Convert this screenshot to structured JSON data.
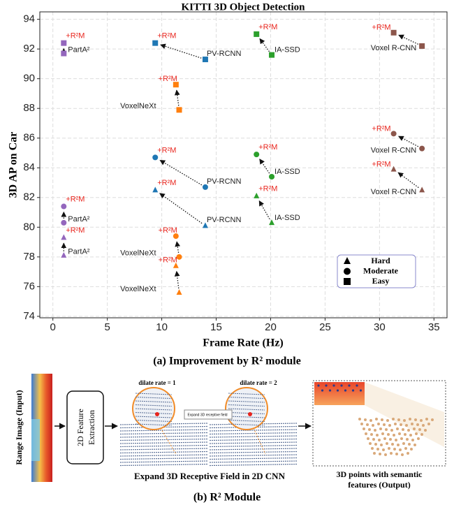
{
  "chart_data": {
    "type": "scatter",
    "title": "KITTI 3D Object Detection",
    "xlabel": "Frame Rate (Hz)",
    "ylabel": "3D AP on Car",
    "annotation": "+R²M",
    "xlim": [
      -1.2,
      36.2
    ],
    "ylim": [
      73.9,
      94.5
    ],
    "xticks": [
      0,
      5,
      10,
      15,
      20,
      25,
      30,
      35
    ],
    "yticks": [
      74,
      76,
      78,
      80,
      82,
      84,
      86,
      88,
      90,
      92,
      94
    ],
    "grid": true,
    "legend": [
      {
        "name": "Hard",
        "marker": "triangle"
      },
      {
        "name": "Moderate",
        "marker": "circle"
      },
      {
        "name": "Easy",
        "marker": "square"
      }
    ],
    "series": [
      {
        "label": "PartA²",
        "color": "#9467bd",
        "marker": "square",
        "x": [
          1.0,
          1.0
        ],
        "values": [
          91.7,
          92.4
        ]
      },
      {
        "label": "PartA²",
        "color": "#9467bd",
        "marker": "circle",
        "x": [
          1.0,
          1.0
        ],
        "values": [
          80.3,
          81.4
        ]
      },
      {
        "label": "PartA²",
        "color": "#9467bd",
        "marker": "triangle",
        "x": [
          1.0,
          1.0
        ],
        "values": [
          78.1,
          79.3
        ]
      },
      {
        "label": "PV-RCNN",
        "color": "#1f77b4",
        "marker": "square",
        "x": [
          14.0,
          9.4
        ],
        "values": [
          91.3,
          92.4
        ]
      },
      {
        "label": "PV-RCNN",
        "color": "#1f77b4",
        "marker": "circle",
        "x": [
          14.0,
          9.4
        ],
        "values": [
          82.7,
          84.7
        ]
      },
      {
        "label": "PV-RCNN",
        "color": "#1f77b4",
        "marker": "triangle",
        "x": [
          14.0,
          9.4
        ],
        "values": [
          80.1,
          82.5
        ]
      },
      {
        "label": "VoxelNeXt",
        "color": "#ff7f0e",
        "marker": "square",
        "x": [
          11.6,
          11.3
        ],
        "values": [
          87.9,
          89.6
        ]
      },
      {
        "label": "VoxelNeXt",
        "color": "#ff7f0e",
        "marker": "circle",
        "x": [
          11.6,
          11.3
        ],
        "values": [
          78.0,
          79.4
        ]
      },
      {
        "label": "VoxelNeXt",
        "color": "#ff7f0e",
        "marker": "triangle",
        "x": [
          11.6,
          11.3
        ],
        "values": [
          75.6,
          77.4
        ]
      },
      {
        "label": "IA-SSD",
        "color": "#2ca02c",
        "marker": "square",
        "x": [
          20.1,
          18.7
        ],
        "values": [
          91.6,
          93.0
        ]
      },
      {
        "label": "IA-SSD",
        "color": "#2ca02c",
        "marker": "circle",
        "x": [
          20.1,
          18.7
        ],
        "values": [
          83.4,
          84.9
        ]
      },
      {
        "label": "IA-SSD",
        "color": "#2ca02c",
        "marker": "triangle",
        "x": [
          20.1,
          18.7
        ],
        "values": [
          80.3,
          82.1
        ]
      },
      {
        "label": "Voxel R-CNN",
        "color": "#8c564b",
        "marker": "square",
        "x": [
          33.9,
          31.3
        ],
        "values": [
          92.2,
          93.1
        ]
      },
      {
        "label": "Voxel R-CNN",
        "color": "#8c564b",
        "marker": "circle",
        "x": [
          33.9,
          31.3
        ],
        "values": [
          85.3,
          86.3
        ]
      },
      {
        "label": "Voxel R-CNN",
        "color": "#8c564b",
        "marker": "triangle",
        "x": [
          33.9,
          31.3
        ],
        "values": [
          82.5,
          83.9
        ]
      }
    ]
  },
  "caption_a": "(a) Improvement by R² module",
  "diagram": {
    "input_label": "Range Image (Input)",
    "block": [
      "2D Feature",
      "Extraction"
    ],
    "panel_1": "dilate rate = 1",
    "panel_2": "dilate rate = 2",
    "expand_note": "Expand 3D receptive field",
    "panels_caption": "Expand 3D Receptive Field in 2D CNN",
    "output_caption": [
      "3D points with semantic",
      "features (Output)"
    ]
  },
  "caption_b": "(b) R² Module"
}
